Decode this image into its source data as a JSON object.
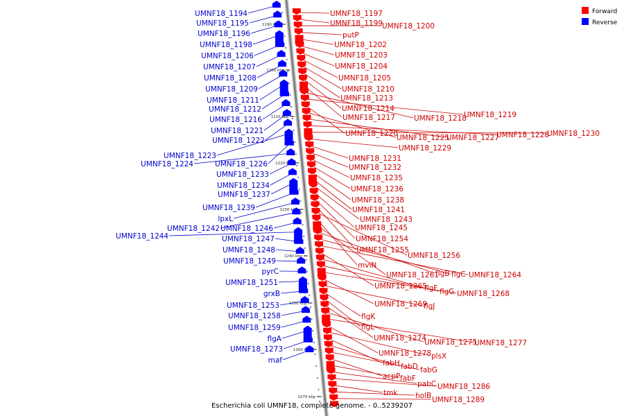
{
  "caption": "Escherichia coli UMNF18, complete genome. - 0..5239207",
  "legend": [
    {
      "label": "Forward",
      "color": "#ff0000"
    },
    {
      "label": "Reverse",
      "color": "#0000ff"
    }
  ],
  "colors": {
    "forward_label": "#cc0000",
    "reverse_label": "#0000cc",
    "forward_feature": "#ff0000",
    "reverse_feature": "#0000ff",
    "axis": "#888888"
  },
  "ticks": [
    "1190 kbp",
    "1200 kbp",
    "1210 kbp",
    "1220 kbp",
    "1230 kbp",
    "1240 kbp",
    "1250 kbp",
    "1260 kbp",
    "1270 kbp"
  ],
  "reverse_labels": [
    "UMNF18_1194",
    "UMNF18_1195",
    "UMNF18_1196",
    "UMNF18_1198",
    "UMNF18_1206",
    "UMNF18_1207",
    "UMNF18_1208",
    "UMNF18_1209",
    "UMNF18_1211",
    "UMNF18_1212",
    "UMNF18_1216",
    "UMNF18_1221",
    "UMNF18_1222",
    "UMNF18_1223",
    "UMNF18_1226",
    "UMNF18_1224",
    "UMNF18_1233",
    "UMNF18_1234",
    "UMNF18_1237",
    "UMNF18_1239",
    "lpxL",
    "UMNF18_1242",
    "UMNF18_1246",
    "UMNF18_1244",
    "UMNF18_1247",
    "UMNF18_1248",
    "UMNF18_1249",
    "pyrC",
    "UMNF18_1251",
    "grxB",
    "UMNF18_1253",
    "UMNF18_1258",
    "UMNF18_1259",
    "flgA",
    "UMNF18_1273",
    "maf"
  ],
  "forward_labels": [
    "UMNF18_1197",
    "UMNF18_1199",
    "UMNF18_1200",
    "putP",
    "UMNF18_1202",
    "UMNF18_1203",
    "UMNF18_1204",
    "UMNF18_1205",
    "UMNF18_1210",
    "UMNF18_1213",
    "UMNF18_1214",
    "UMNF18_1217",
    "UMNF18_1218",
    "UMNF18_1219",
    "UMNF18_1220",
    "UMNF18_1225",
    "UMNF18_1227",
    "UMNF18_1228",
    "UMNF18_1230",
    "UMNF18_1229",
    "UMNF18_1231",
    "UMNF18_1232",
    "UMNF18_1235",
    "UMNF18_1236",
    "UMNF18_1238",
    "UMNF18_1241",
    "UMNF18_1243",
    "UMNF18_1245",
    "UMNF18_1254",
    "UMNF18_1255",
    "UMNF18_1256",
    "mviN",
    "UMNF18_1261",
    "flgB",
    "flgC",
    "UMNF18_1264",
    "UMNF18_1265",
    "flgF",
    "flgG",
    "UMNF18_1268",
    "UMNF18_1269",
    "flgJ",
    "flgK",
    "flgL",
    "UMNF18_1274",
    "UMNF18_1275",
    "UMNF18_1277",
    "UMNF18_1278",
    "plsX",
    "fabH",
    "fabD",
    "fabG",
    "acpP",
    "fabF",
    "pabC",
    "UMNF18_1286",
    "tmk",
    "holB",
    "UMNF18_1289"
  ]
}
